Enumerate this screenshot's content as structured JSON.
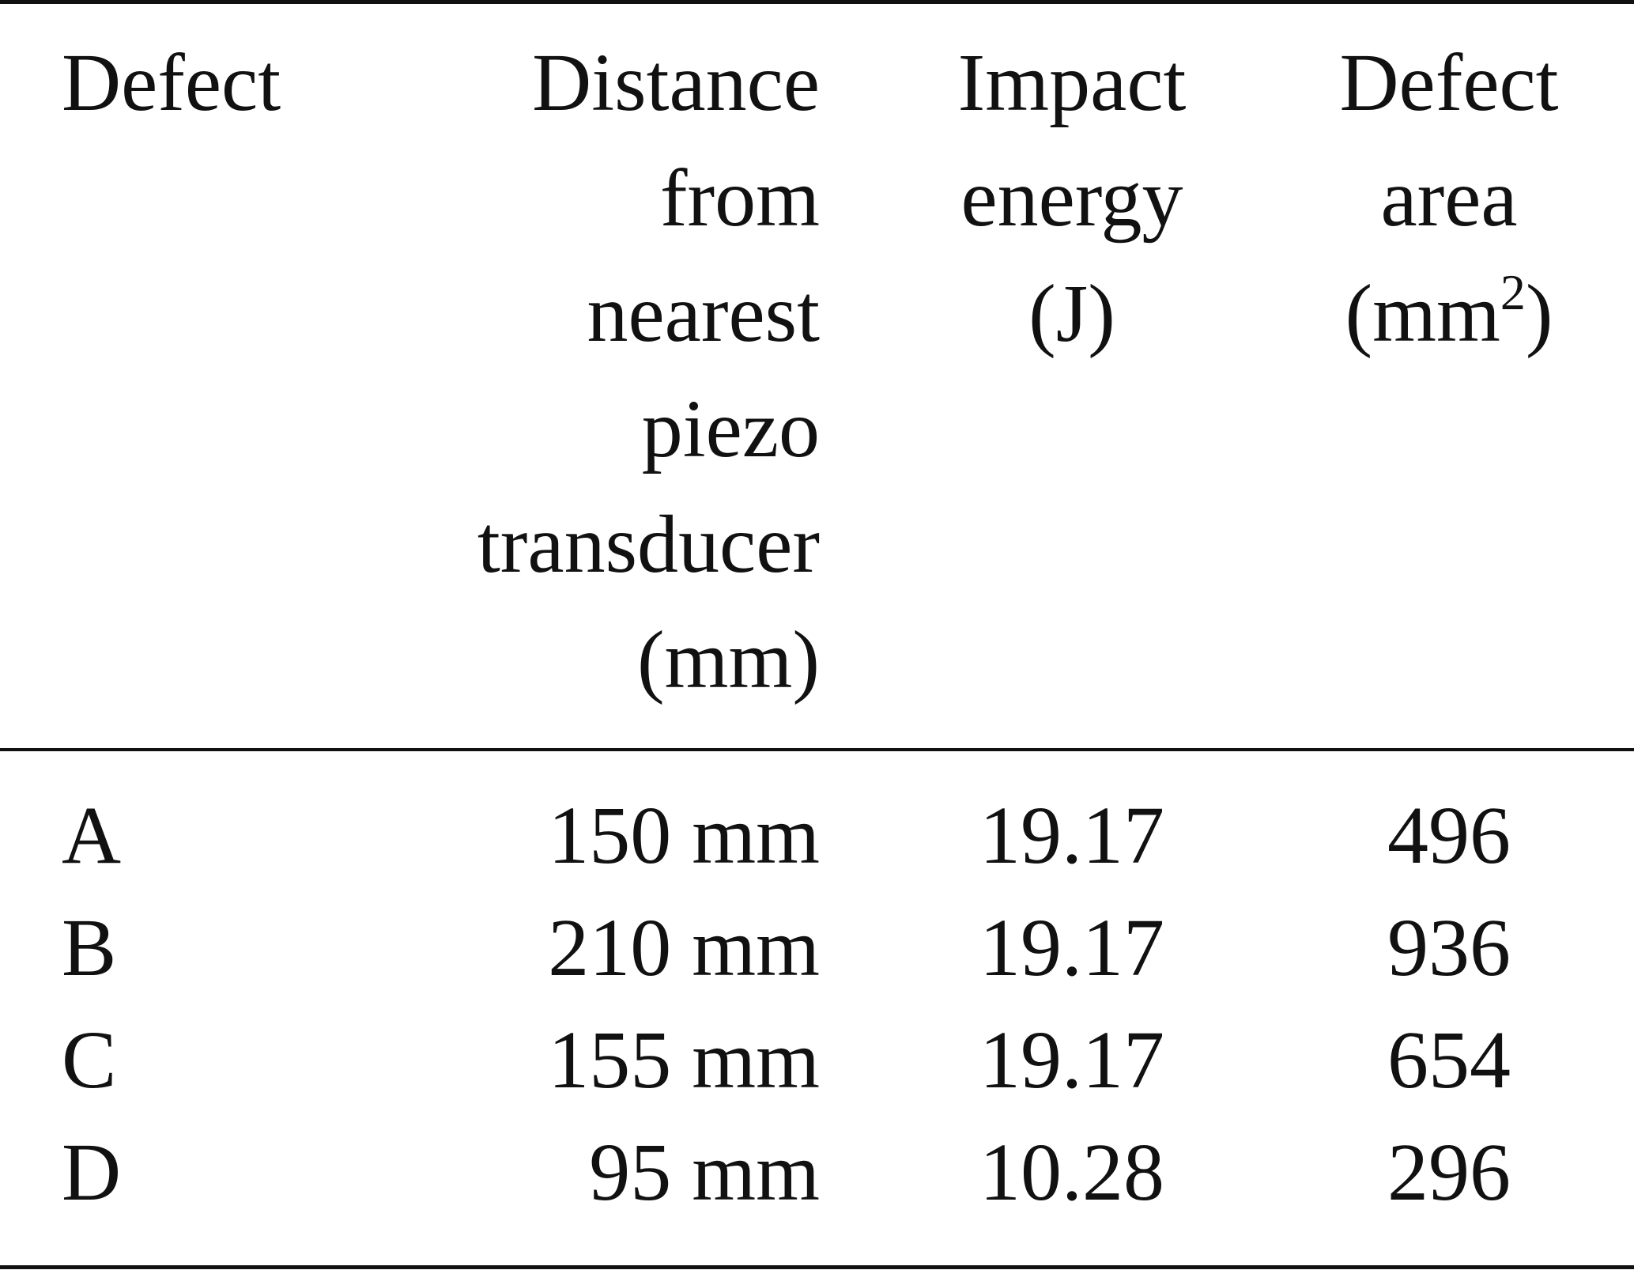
{
  "table": {
    "headers": {
      "defect": "Defect",
      "distance": [
        "Distance",
        "from",
        "nearest",
        "piezo",
        "transducer",
        "(mm)"
      ],
      "impact": [
        "Impact",
        "energy",
        "(J)"
      ],
      "area": [
        "Defect",
        "area"
      ],
      "area_unit_open": "(mm",
      "area_unit_sup": "2",
      "area_unit_close": ")"
    },
    "rows": [
      {
        "defect": "A",
        "distance": "150 mm",
        "impact": "19.17",
        "area": "496"
      },
      {
        "defect": "B",
        "distance": "210 mm",
        "impact": "19.17",
        "area": "936"
      },
      {
        "defect": "C",
        "distance": "155 mm",
        "impact": "19.17",
        "area": "654"
      },
      {
        "defect": "D",
        "distance": "95 mm",
        "impact": "10.28",
        "area": "296"
      }
    ]
  }
}
